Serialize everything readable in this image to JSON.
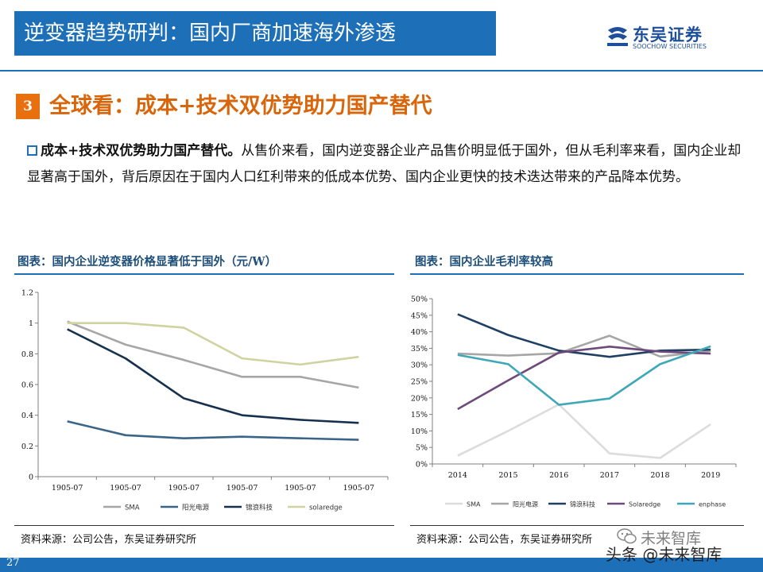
{
  "header": {
    "title": "逆变器趋势研判：国内厂商加速海外渗透",
    "logo_cn": "东吴证券",
    "logo_en": "SOOCHOW SECURITIES",
    "brand_color": "#1d6fb8"
  },
  "section": {
    "number": "3",
    "title": "全球看：成本+技术双优势助力国产替代",
    "accent_color": "#e9700f"
  },
  "paragraph": {
    "lead": "成本+技术双优势助力国产替代。",
    "body": "从售价来看，国内逆变器企业产品售价明显低于国外，但从毛利率来看，国内企业却显著高于国外，背后原因在于国内人口红利带来的低成本优势、国内企业更快的技术迭达带来的产品降本优势。"
  },
  "charts_meta": {
    "left_title": "图表：国内企业逆变器价格显著低于国外（元/W）",
    "right_title": "图表：国内企业毛利率较高",
    "left_source": "资料来源：公司公告，东吴证券研究所",
    "right_source": "资料来源：公司公告，东吴证券研究所"
  },
  "chart_data": [
    {
      "type": "line",
      "title": "",
      "categories": [
        "1905-07",
        "1905-07",
        "1905-07",
        "1905-07",
        "1905-07",
        "1905-07"
      ],
      "ylim": [
        0,
        1.2
      ],
      "yticks": [
        "0",
        "0.2",
        "0.4",
        "0.6",
        "0.8",
        "1",
        "1.2"
      ],
      "legend_position": "bottom",
      "grid": false,
      "series": [
        {
          "name": "SMA",
          "color": "#a6a6a6",
          "values": [
            1.01,
            0.86,
            0.76,
            0.65,
            0.65,
            0.58
          ]
        },
        {
          "name": "阳光电源",
          "color": "#3a6589",
          "values": [
            0.36,
            0.27,
            0.25,
            0.26,
            0.25,
            0.24
          ]
        },
        {
          "name": "锦浪科技",
          "color": "#17304f",
          "values": [
            0.96,
            0.77,
            0.51,
            0.4,
            0.37,
            0.35
          ]
        },
        {
          "name": "solaredge",
          "color": "#cfd3a0",
          "values": [
            1.0,
            1.0,
            0.97,
            0.77,
            0.73,
            0.78
          ]
        }
      ]
    },
    {
      "type": "line",
      "title": "",
      "categories": [
        "2014",
        "2015",
        "2016",
        "2017",
        "2018",
        "2019"
      ],
      "ylim": [
        0,
        50
      ],
      "yticks": [
        "0%",
        "5%",
        "10%",
        "15%",
        "20%",
        "25%",
        "30%",
        "35%",
        "40%",
        "45%",
        "50%"
      ],
      "legend_position": "bottom",
      "grid": false,
      "series": [
        {
          "name": "SMA",
          "color": "#dcdcdc",
          "values": [
            2.5,
            10.0,
            18.0,
            3.2,
            1.8,
            12.0
          ]
        },
        {
          "name": "阳光电源",
          "color": "#a6a6a6",
          "values": [
            33.4,
            32.8,
            33.5,
            38.8,
            32.5,
            34.2
          ]
        },
        {
          "name": "锦浪科技",
          "color": "#1f3f64",
          "values": [
            45.3,
            39.0,
            34.3,
            32.4,
            34.3,
            34.6
          ]
        },
        {
          "name": "Solaredge",
          "color": "#6d4a7a",
          "values": [
            16.6,
            25.3,
            33.7,
            35.5,
            34.0,
            33.4
          ]
        },
        {
          "name": "enphase",
          "color": "#3fa8b8",
          "values": [
            33.0,
            30.2,
            17.9,
            19.8,
            30.2,
            35.6
          ]
        }
      ]
    }
  ],
  "footer": {
    "page_number": "27",
    "watermark_top": "未来智库",
    "watermark_bottom": "头条 @未来智库"
  }
}
